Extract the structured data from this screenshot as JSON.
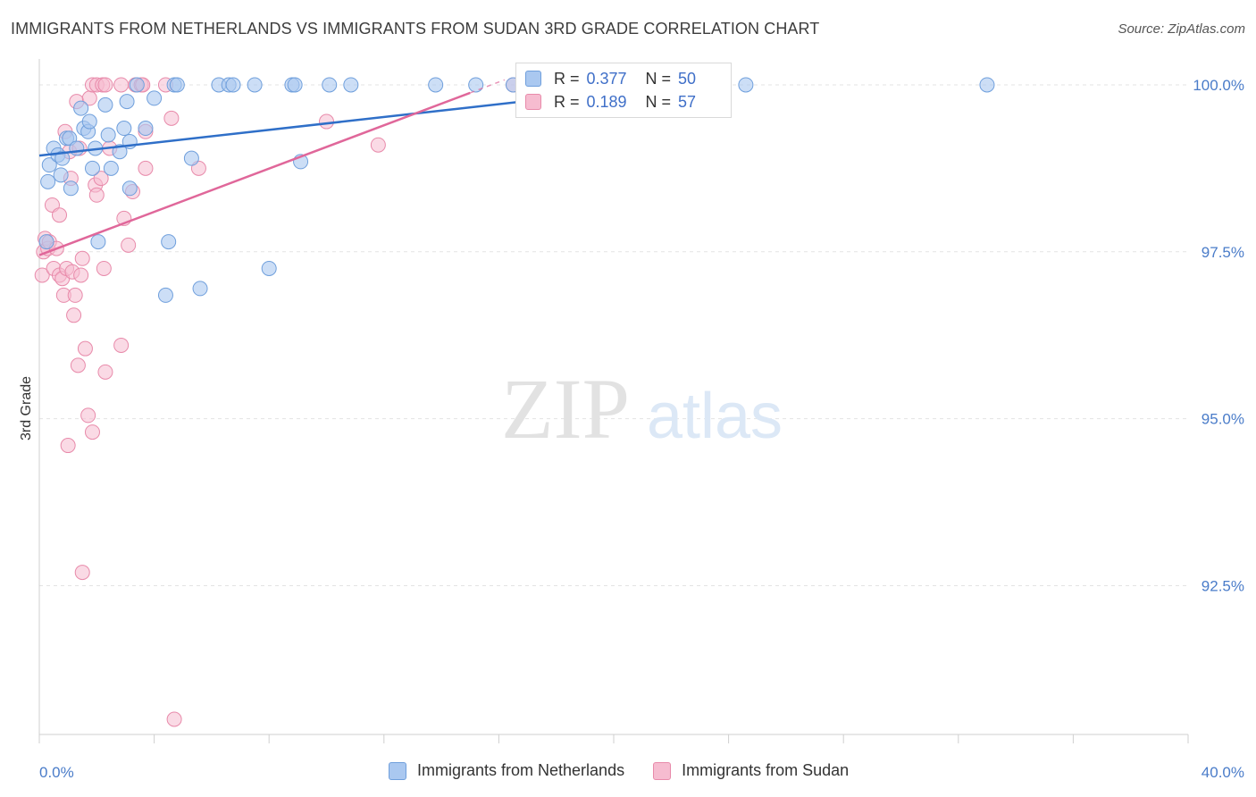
{
  "title": "IMMIGRANTS FROM NETHERLANDS VS IMMIGRANTS FROM SUDAN 3RD GRADE CORRELATION CHART",
  "source": "Source: ZipAtlas.com",
  "watermark": {
    "zip": "ZIP",
    "atlas": "atlas"
  },
  "legend": {
    "netherlands": {
      "r_label": "R =",
      "r_value": "0.377",
      "n_label": "N =",
      "n_value": "50"
    },
    "sudan": {
      "r_label": "R =",
      "r_value": "0.189",
      "n_label": "N =",
      "n_value": "57"
    }
  },
  "colors": {
    "netherlands_fill": "#aac8f0",
    "netherlands_stroke": "#6f9fdc",
    "netherlands_line": "#2f6fc8",
    "sudan_fill": "#f6bcd0",
    "sudan_stroke": "#e88aaa",
    "sudan_line": "#e0679a",
    "tick_text": "#4a7cc9",
    "grid": "#e3e3e3"
  },
  "chart_data": {
    "type": "scatter",
    "title": "IMMIGRANTS FROM NETHERLANDS VS IMMIGRANTS FROM SUDAN 3RD GRADE CORRELATION CHART",
    "xlabel": "",
    "ylabel": "3rd Grade",
    "xlim": [
      0,
      40
    ],
    "ylim": [
      90.5,
      100.2
    ],
    "x_tick_labels": [
      "0.0%",
      "40.0%"
    ],
    "y_ticks": [
      92.5,
      95.0,
      97.5,
      100.0
    ],
    "y_tick_labels": [
      "92.5%",
      "95.0%",
      "97.5%",
      "100.0%"
    ],
    "grid": true,
    "legend_position": "top-center",
    "series": [
      {
        "name": "Immigrants from Netherlands",
        "points": [
          [
            0.25,
            97.65
          ],
          [
            0.3,
            98.55
          ],
          [
            0.35,
            98.8
          ],
          [
            0.5,
            99.05
          ],
          [
            0.65,
            98.95
          ],
          [
            0.75,
            98.65
          ],
          [
            0.8,
            98.9
          ],
          [
            0.95,
            99.2
          ],
          [
            1.05,
            99.2
          ],
          [
            1.1,
            98.45
          ],
          [
            1.3,
            99.05
          ],
          [
            1.45,
            99.65
          ],
          [
            1.55,
            99.35
          ],
          [
            1.7,
            99.3
          ],
          [
            1.75,
            99.45
          ],
          [
            1.85,
            98.75
          ],
          [
            1.95,
            99.05
          ],
          [
            2.05,
            97.65
          ],
          [
            2.3,
            99.7
          ],
          [
            2.4,
            99.25
          ],
          [
            2.5,
            98.75
          ],
          [
            2.8,
            99.0
          ],
          [
            2.95,
            99.35
          ],
          [
            3.05,
            99.75
          ],
          [
            3.15,
            98.45
          ],
          [
            3.15,
            99.15
          ],
          [
            3.4,
            100.0
          ],
          [
            3.7,
            99.35
          ],
          [
            4.0,
            99.8
          ],
          [
            4.4,
            96.85
          ],
          [
            4.5,
            97.65
          ],
          [
            4.7,
            100.0
          ],
          [
            4.8,
            100.0
          ],
          [
            5.3,
            98.9
          ],
          [
            5.6,
            96.95
          ],
          [
            6.25,
            100.0
          ],
          [
            6.6,
            100.0
          ],
          [
            6.75,
            100.0
          ],
          [
            7.5,
            100.0
          ],
          [
            8.0,
            97.25
          ],
          [
            8.8,
            100.0
          ],
          [
            8.9,
            100.0
          ],
          [
            9.1,
            98.85
          ],
          [
            10.1,
            100.0
          ],
          [
            10.85,
            100.0
          ],
          [
            13.8,
            100.0
          ],
          [
            15.2,
            100.0
          ],
          [
            16.5,
            100.0
          ],
          [
            24.6,
            100.0
          ],
          [
            33.0,
            100.0
          ]
        ],
        "trendline": {
          "x": [
            0,
            22.0
          ],
          "y": [
            98.94,
            100.0
          ]
        }
      },
      {
        "name": "Immigrants from Sudan",
        "points": [
          [
            0.1,
            97.15
          ],
          [
            0.15,
            97.5
          ],
          [
            0.2,
            97.7
          ],
          [
            0.3,
            97.55
          ],
          [
            0.35,
            97.65
          ],
          [
            0.45,
            98.2
          ],
          [
            0.5,
            97.25
          ],
          [
            0.6,
            97.55
          ],
          [
            0.7,
            97.15
          ],
          [
            0.7,
            98.05
          ],
          [
            0.8,
            97.1
          ],
          [
            0.85,
            96.85
          ],
          [
            0.9,
            99.3
          ],
          [
            0.95,
            97.25
          ],
          [
            1.0,
            94.6
          ],
          [
            1.05,
            99.0
          ],
          [
            1.1,
            98.6
          ],
          [
            1.15,
            97.2
          ],
          [
            1.2,
            96.55
          ],
          [
            1.25,
            96.85
          ],
          [
            1.3,
            99.75
          ],
          [
            1.35,
            95.8
          ],
          [
            1.4,
            99.05
          ],
          [
            1.45,
            97.15
          ],
          [
            1.5,
            97.4
          ],
          [
            1.5,
            92.7
          ],
          [
            1.6,
            96.05
          ],
          [
            1.7,
            95.05
          ],
          [
            1.75,
            99.8
          ],
          [
            1.85,
            100.0
          ],
          [
            1.85,
            94.8
          ],
          [
            1.95,
            98.5
          ],
          [
            2.0,
            98.35
          ],
          [
            2.0,
            100.0
          ],
          [
            2.15,
            98.6
          ],
          [
            2.2,
            100.0
          ],
          [
            2.25,
            97.25
          ],
          [
            2.3,
            95.7
          ],
          [
            2.3,
            100.0
          ],
          [
            2.45,
            99.05
          ],
          [
            2.85,
            96.1
          ],
          [
            2.85,
            100.0
          ],
          [
            2.95,
            98.0
          ],
          [
            3.1,
            97.6
          ],
          [
            3.25,
            98.4
          ],
          [
            3.35,
            100.0
          ],
          [
            3.55,
            100.0
          ],
          [
            3.6,
            100.0
          ],
          [
            3.7,
            98.75
          ],
          [
            3.7,
            99.3
          ],
          [
            4.4,
            100.0
          ],
          [
            4.6,
            99.5
          ],
          [
            4.7,
            90.5
          ],
          [
            5.55,
            98.75
          ],
          [
            10.0,
            99.45
          ],
          [
            11.8,
            99.1
          ],
          [
            16.5,
            100.0
          ]
        ],
        "trendline": {
          "x": [
            0,
            15.0
          ],
          "y": [
            97.45,
            99.88
          ]
        }
      }
    ]
  },
  "bottom_legend": {
    "netherlands": "Immigrants from Netherlands",
    "sudan": "Immigrants from Sudan"
  }
}
